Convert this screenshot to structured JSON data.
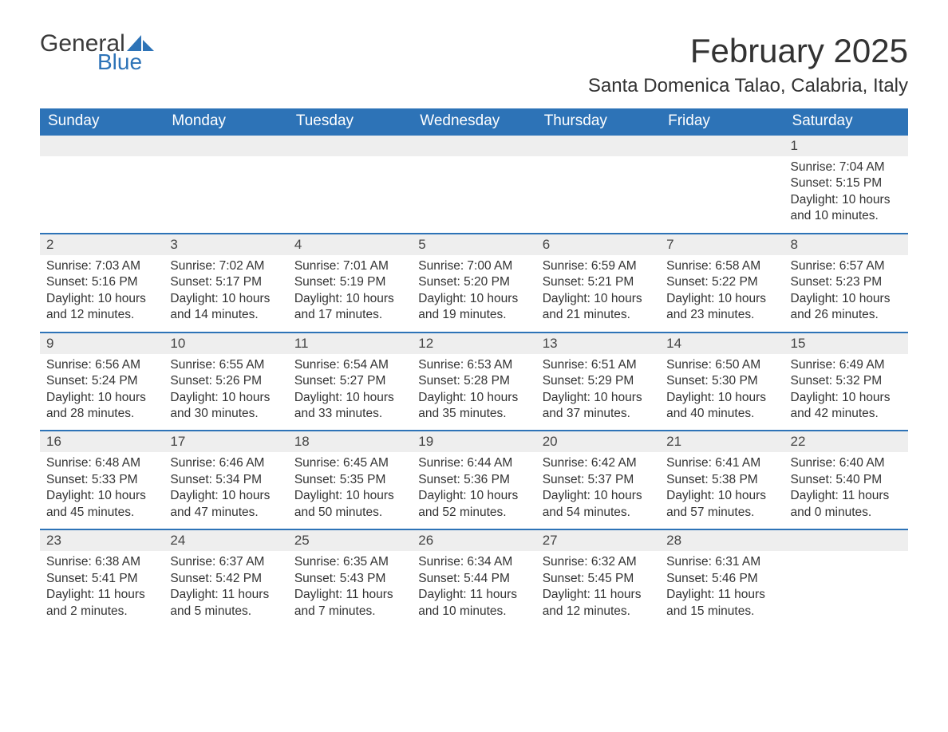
{
  "brand": {
    "word1": "General",
    "word2": "Blue",
    "tri_color": "#2d73b7"
  },
  "header": {
    "month_title": "February 2025",
    "location": "Santa Domenica Talao, Calabria, Italy"
  },
  "colors": {
    "header_bg": "#2d73b7",
    "header_text": "#ffffff",
    "daybar_bg": "#eeeeee",
    "daybar_border": "#2d73b7",
    "body_text": "#333333",
    "page_bg": "#ffffff"
  },
  "typography": {
    "title_fontsize": 42,
    "location_fontsize": 24,
    "weekday_fontsize": 19,
    "daynum_fontsize": 17,
    "body_fontsize": 15.5
  },
  "calendar": {
    "type": "table",
    "columns": [
      "Sunday",
      "Monday",
      "Tuesday",
      "Wednesday",
      "Thursday",
      "Friday",
      "Saturday"
    ],
    "weeks": [
      [
        {
          "day": "",
          "sunrise": "",
          "sunset": "",
          "daylight": ""
        },
        {
          "day": "",
          "sunrise": "",
          "sunset": "",
          "daylight": ""
        },
        {
          "day": "",
          "sunrise": "",
          "sunset": "",
          "daylight": ""
        },
        {
          "day": "",
          "sunrise": "",
          "sunset": "",
          "daylight": ""
        },
        {
          "day": "",
          "sunrise": "",
          "sunset": "",
          "daylight": ""
        },
        {
          "day": "",
          "sunrise": "",
          "sunset": "",
          "daylight": ""
        },
        {
          "day": "1",
          "sunrise": "Sunrise: 7:04 AM",
          "sunset": "Sunset: 5:15 PM",
          "daylight": "Daylight: 10 hours and 10 minutes."
        }
      ],
      [
        {
          "day": "2",
          "sunrise": "Sunrise: 7:03 AM",
          "sunset": "Sunset: 5:16 PM",
          "daylight": "Daylight: 10 hours and 12 minutes."
        },
        {
          "day": "3",
          "sunrise": "Sunrise: 7:02 AM",
          "sunset": "Sunset: 5:17 PM",
          "daylight": "Daylight: 10 hours and 14 minutes."
        },
        {
          "day": "4",
          "sunrise": "Sunrise: 7:01 AM",
          "sunset": "Sunset: 5:19 PM",
          "daylight": "Daylight: 10 hours and 17 minutes."
        },
        {
          "day": "5",
          "sunrise": "Sunrise: 7:00 AM",
          "sunset": "Sunset: 5:20 PM",
          "daylight": "Daylight: 10 hours and 19 minutes."
        },
        {
          "day": "6",
          "sunrise": "Sunrise: 6:59 AM",
          "sunset": "Sunset: 5:21 PM",
          "daylight": "Daylight: 10 hours and 21 minutes."
        },
        {
          "day": "7",
          "sunrise": "Sunrise: 6:58 AM",
          "sunset": "Sunset: 5:22 PM",
          "daylight": "Daylight: 10 hours and 23 minutes."
        },
        {
          "day": "8",
          "sunrise": "Sunrise: 6:57 AM",
          "sunset": "Sunset: 5:23 PM",
          "daylight": "Daylight: 10 hours and 26 minutes."
        }
      ],
      [
        {
          "day": "9",
          "sunrise": "Sunrise: 6:56 AM",
          "sunset": "Sunset: 5:24 PM",
          "daylight": "Daylight: 10 hours and 28 minutes."
        },
        {
          "day": "10",
          "sunrise": "Sunrise: 6:55 AM",
          "sunset": "Sunset: 5:26 PM",
          "daylight": "Daylight: 10 hours and 30 minutes."
        },
        {
          "day": "11",
          "sunrise": "Sunrise: 6:54 AM",
          "sunset": "Sunset: 5:27 PM",
          "daylight": "Daylight: 10 hours and 33 minutes."
        },
        {
          "day": "12",
          "sunrise": "Sunrise: 6:53 AM",
          "sunset": "Sunset: 5:28 PM",
          "daylight": "Daylight: 10 hours and 35 minutes."
        },
        {
          "day": "13",
          "sunrise": "Sunrise: 6:51 AM",
          "sunset": "Sunset: 5:29 PM",
          "daylight": "Daylight: 10 hours and 37 minutes."
        },
        {
          "day": "14",
          "sunrise": "Sunrise: 6:50 AM",
          "sunset": "Sunset: 5:30 PM",
          "daylight": "Daylight: 10 hours and 40 minutes."
        },
        {
          "day": "15",
          "sunrise": "Sunrise: 6:49 AM",
          "sunset": "Sunset: 5:32 PM",
          "daylight": "Daylight: 10 hours and 42 minutes."
        }
      ],
      [
        {
          "day": "16",
          "sunrise": "Sunrise: 6:48 AM",
          "sunset": "Sunset: 5:33 PM",
          "daylight": "Daylight: 10 hours and 45 minutes."
        },
        {
          "day": "17",
          "sunrise": "Sunrise: 6:46 AM",
          "sunset": "Sunset: 5:34 PM",
          "daylight": "Daylight: 10 hours and 47 minutes."
        },
        {
          "day": "18",
          "sunrise": "Sunrise: 6:45 AM",
          "sunset": "Sunset: 5:35 PM",
          "daylight": "Daylight: 10 hours and 50 minutes."
        },
        {
          "day": "19",
          "sunrise": "Sunrise: 6:44 AM",
          "sunset": "Sunset: 5:36 PM",
          "daylight": "Daylight: 10 hours and 52 minutes."
        },
        {
          "day": "20",
          "sunrise": "Sunrise: 6:42 AM",
          "sunset": "Sunset: 5:37 PM",
          "daylight": "Daylight: 10 hours and 54 minutes."
        },
        {
          "day": "21",
          "sunrise": "Sunrise: 6:41 AM",
          "sunset": "Sunset: 5:38 PM",
          "daylight": "Daylight: 10 hours and 57 minutes."
        },
        {
          "day": "22",
          "sunrise": "Sunrise: 6:40 AM",
          "sunset": "Sunset: 5:40 PM",
          "daylight": "Daylight: 11 hours and 0 minutes."
        }
      ],
      [
        {
          "day": "23",
          "sunrise": "Sunrise: 6:38 AM",
          "sunset": "Sunset: 5:41 PM",
          "daylight": "Daylight: 11 hours and 2 minutes."
        },
        {
          "day": "24",
          "sunrise": "Sunrise: 6:37 AM",
          "sunset": "Sunset: 5:42 PM",
          "daylight": "Daylight: 11 hours and 5 minutes."
        },
        {
          "day": "25",
          "sunrise": "Sunrise: 6:35 AM",
          "sunset": "Sunset: 5:43 PM",
          "daylight": "Daylight: 11 hours and 7 minutes."
        },
        {
          "day": "26",
          "sunrise": "Sunrise: 6:34 AM",
          "sunset": "Sunset: 5:44 PM",
          "daylight": "Daylight: 11 hours and 10 minutes."
        },
        {
          "day": "27",
          "sunrise": "Sunrise: 6:32 AM",
          "sunset": "Sunset: 5:45 PM",
          "daylight": "Daylight: 11 hours and 12 minutes."
        },
        {
          "day": "28",
          "sunrise": "Sunrise: 6:31 AM",
          "sunset": "Sunset: 5:46 PM",
          "daylight": "Daylight: 11 hours and 15 minutes."
        },
        {
          "day": "",
          "sunrise": "",
          "sunset": "",
          "daylight": ""
        }
      ]
    ]
  }
}
